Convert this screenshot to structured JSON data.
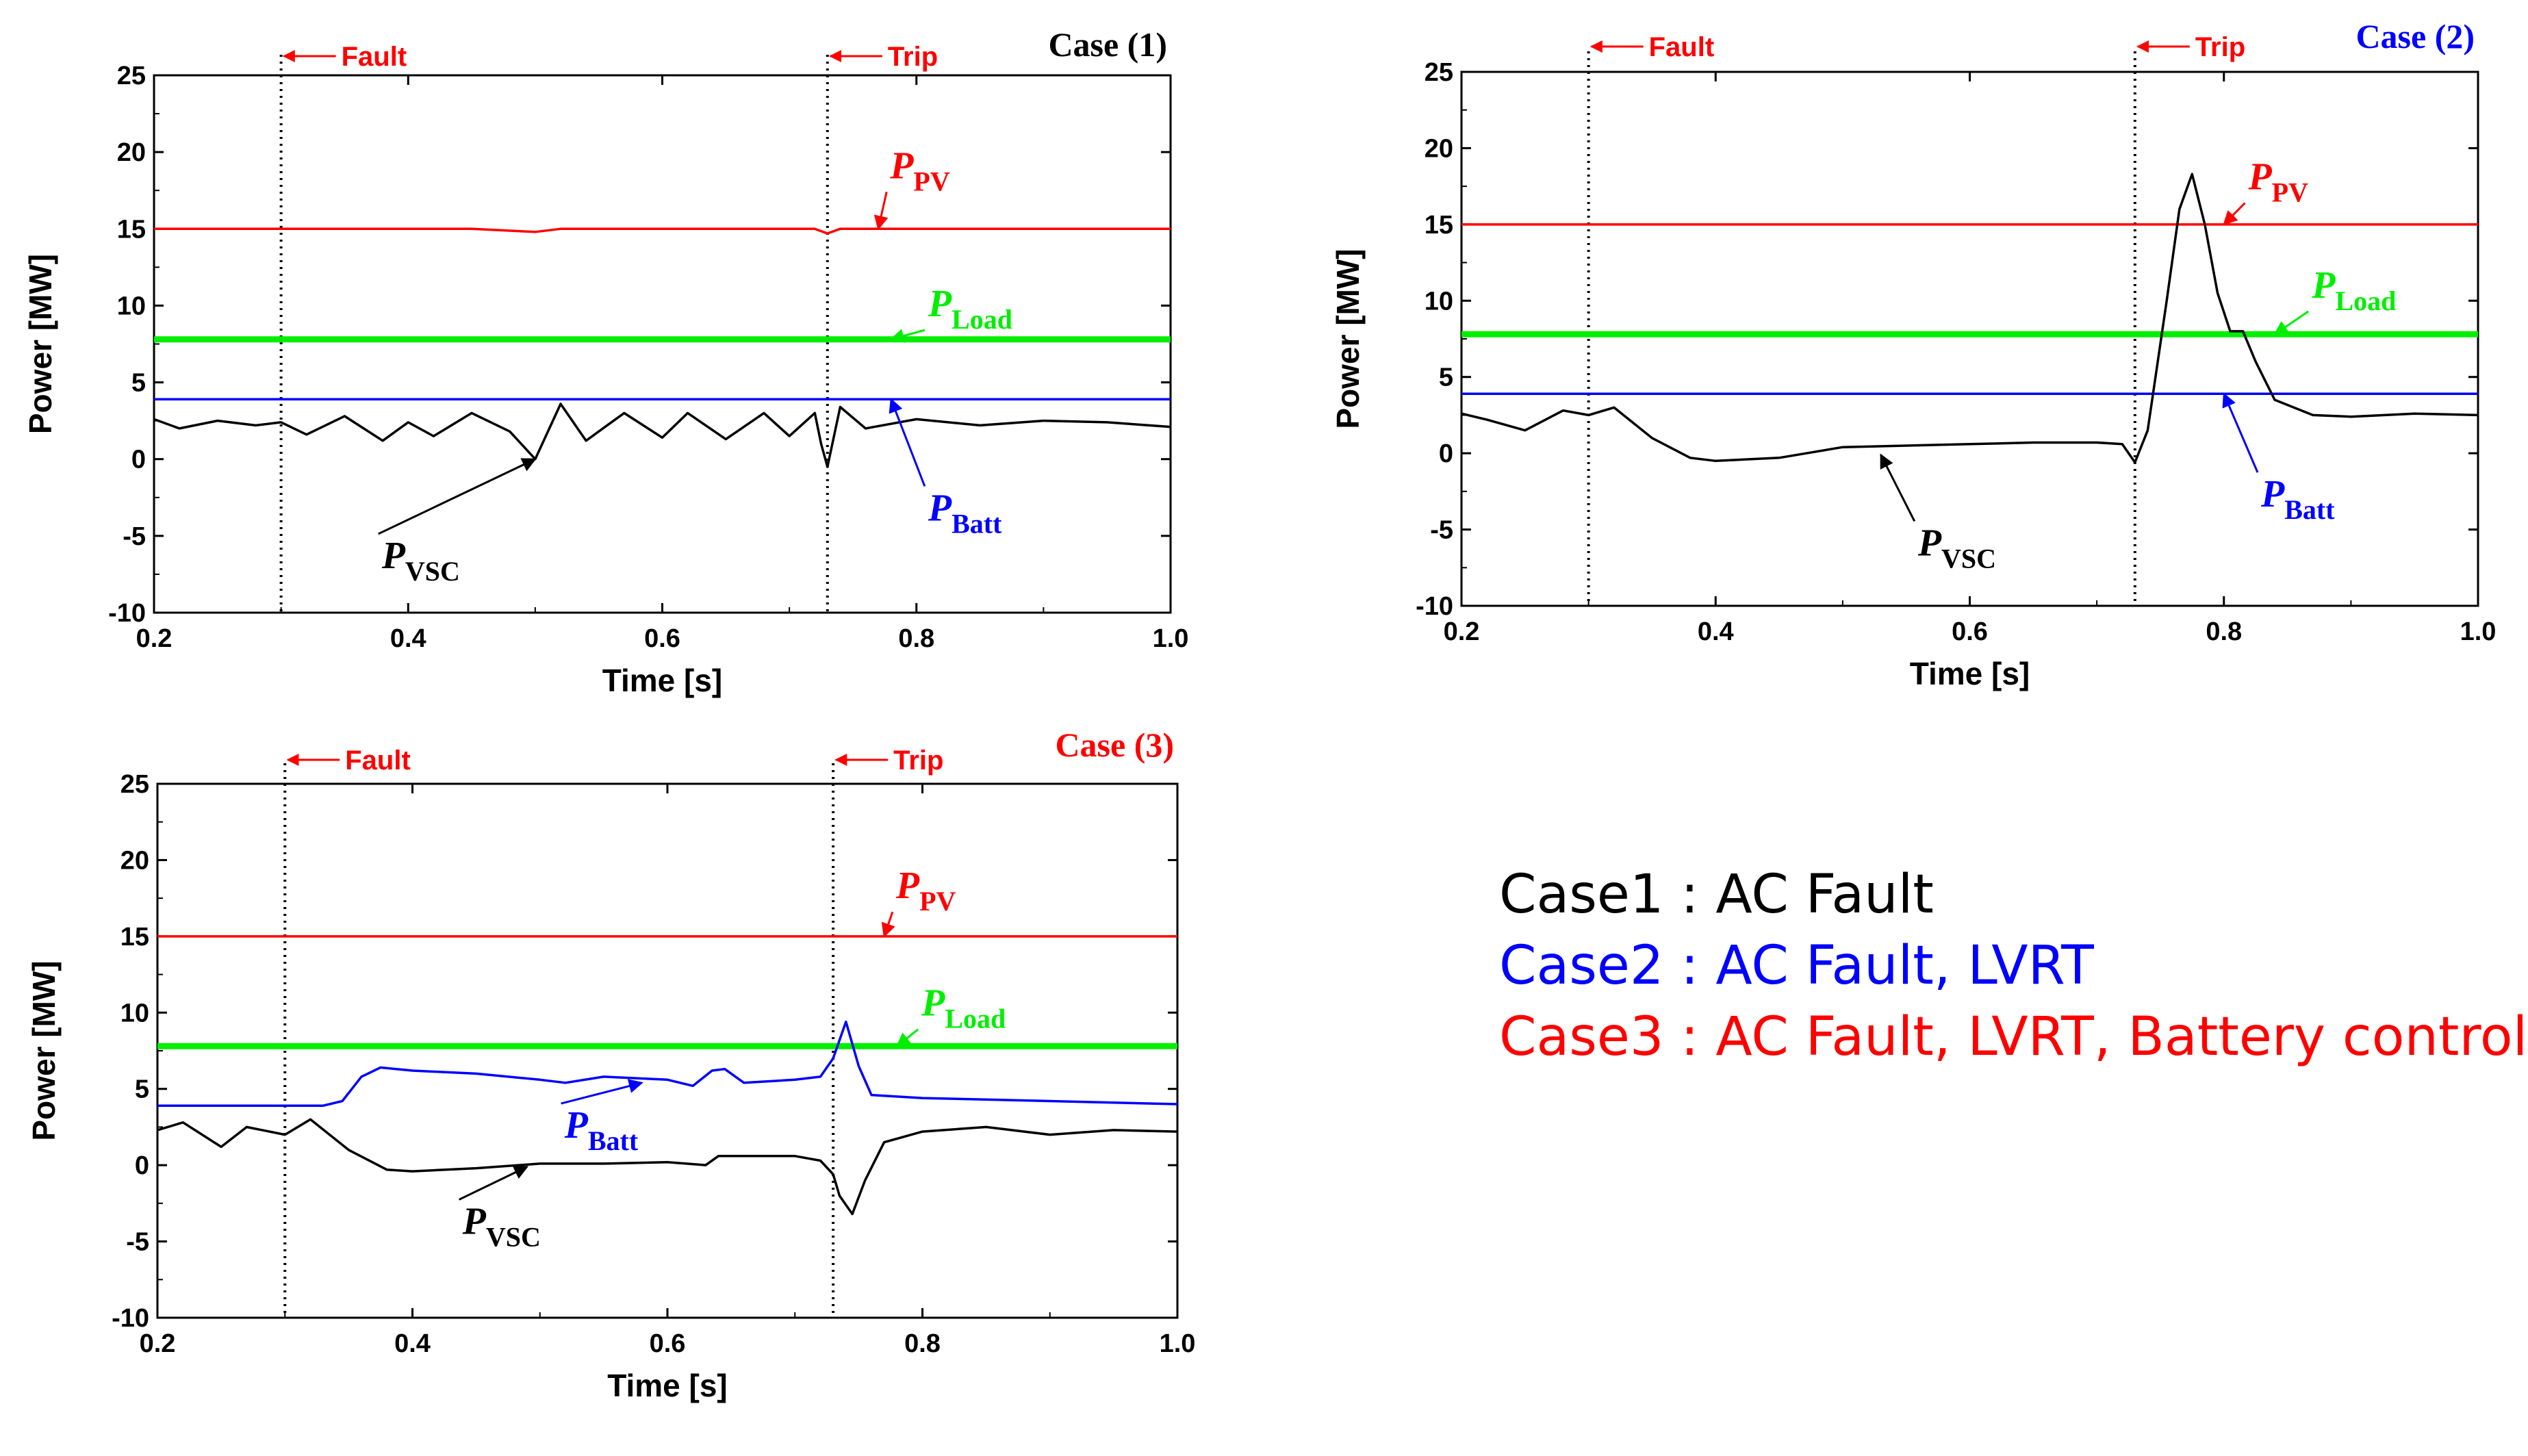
{
  "chart_data": [
    {
      "type": "line",
      "title": "Case (1)",
      "title_color": "#000000",
      "xlabel": "Time [s]",
      "ylabel": "Power [MW]",
      "xlim": [
        0.2,
        1.0
      ],
      "ylim": [
        -10,
        25
      ],
      "xticks": [
        0.2,
        0.4,
        0.6,
        0.8,
        1.0
      ],
      "xtick_labels": [
        "0.2",
        "0.4",
        "0.6",
        "0.8",
        "1.0"
      ],
      "yticks": [
        -10,
        -5,
        0,
        5,
        10,
        15,
        20,
        25
      ],
      "ytick_labels": [
        "-10",
        "-5",
        "0",
        "5",
        "10",
        "15",
        "20",
        "25"
      ],
      "events": [
        {
          "name": "fault",
          "label": "Fault",
          "x": 0.3
        },
        {
          "name": "trip",
          "label": "Trip",
          "x": 0.73
        }
      ],
      "series": [
        {
          "key": "pv",
          "name": "P_PV",
          "label_main": "P",
          "label_sub": "PV",
          "color": "#ff0000",
          "x": [
            0.2,
            0.45,
            0.5,
            0.52,
            0.72,
            0.73,
            0.74,
            1.0
          ],
          "y": [
            15,
            15,
            14.8,
            15,
            15,
            14.7,
            15,
            15
          ],
          "annotation": {
            "x": 0.79,
            "y": 18.3,
            "arrow_to": [
              0.77,
              15
            ]
          }
        },
        {
          "key": "load",
          "name": "P_Load",
          "label_main": "P",
          "label_sub": "Load",
          "color": "#00ee00",
          "x": [
            0.2,
            1.0
          ],
          "y": [
            7.8,
            7.8
          ],
          "annotation": {
            "x": 0.82,
            "y": 9.3,
            "arrow_to": [
              0.78,
              7.8
            ]
          }
        },
        {
          "key": "batt",
          "name": "P_Batt",
          "label_main": "P",
          "label_sub": "Batt",
          "color": "#0000ff",
          "x": [
            0.2,
            1.0
          ],
          "y": [
            3.9,
            3.9
          ],
          "annotation": {
            "x": 0.82,
            "y": -4.0,
            "arrow_to": [
              0.78,
              3.9
            ]
          }
        },
        {
          "key": "vsc",
          "name": "P_VSC",
          "label_main": "P",
          "label_sub": "VSC",
          "color": "#000000",
          "x": [
            0.2,
            0.22,
            0.25,
            0.28,
            0.3,
            0.32,
            0.35,
            0.38,
            0.4,
            0.42,
            0.45,
            0.48,
            0.5,
            0.52,
            0.54,
            0.57,
            0.6,
            0.62,
            0.65,
            0.68,
            0.7,
            0.72,
            0.725,
            0.73,
            0.74,
            0.76,
            0.8,
            0.85,
            0.9,
            0.95,
            1.0
          ],
          "y": [
            2.6,
            2.0,
            2.5,
            2.2,
            2.4,
            1.6,
            2.8,
            1.2,
            2.4,
            1.5,
            3.0,
            1.8,
            0.0,
            3.6,
            1.2,
            3.0,
            1.4,
            3.0,
            1.3,
            3.0,
            1.5,
            3.0,
            1.0,
            -0.5,
            3.4,
            2.0,
            2.6,
            2.2,
            2.5,
            2.4,
            2.1
          ],
          "annotation": {
            "x": 0.39,
            "y": -7.1,
            "arrow_to": [
              0.5,
              0.0
            ]
          }
        }
      ]
    },
    {
      "type": "line",
      "title": "Case (2)",
      "title_color": "#0000ff",
      "xlabel": "Time [s]",
      "ylabel": "Power [MW]",
      "xlim": [
        0.2,
        1.0
      ],
      "ylim": [
        -10,
        25
      ],
      "xticks": [
        0.2,
        0.4,
        0.6,
        0.8,
        1.0
      ],
      "xtick_labels": [
        "0.2",
        "0.4",
        "0.6",
        "0.8",
        "1.0"
      ],
      "yticks": [
        -10,
        -5,
        0,
        5,
        10,
        15,
        20,
        25
      ],
      "ytick_labels": [
        "-10",
        "-5",
        "0",
        "5",
        "10",
        "15",
        "20",
        "25"
      ],
      "events": [
        {
          "name": "fault",
          "label": "Fault",
          "x": 0.3
        },
        {
          "name": "trip",
          "label": "Trip",
          "x": 0.73
        }
      ],
      "series": [
        {
          "key": "pv",
          "name": "P_PV",
          "label_main": "P",
          "label_sub": "PV",
          "color": "#ff0000",
          "x": [
            0.2,
            1.0
          ],
          "y": [
            15,
            15
          ],
          "annotation": {
            "x": 0.83,
            "y": 17.3,
            "arrow_to": [
              0.8,
              15
            ]
          }
        },
        {
          "key": "load",
          "name": "P_Load",
          "label_main": "P",
          "label_sub": "Load",
          "color": "#00ee00",
          "x": [
            0.2,
            1.0
          ],
          "y": [
            7.8,
            7.8
          ],
          "annotation": {
            "x": 0.88,
            "y": 10.2,
            "arrow_to": [
              0.84,
              7.8
            ]
          }
        },
        {
          "key": "batt",
          "name": "P_Batt",
          "label_main": "P",
          "label_sub": "Batt",
          "color": "#0000ff",
          "x": [
            0.2,
            1.0
          ],
          "y": [
            3.9,
            3.9
          ],
          "annotation": {
            "x": 0.84,
            "y": -3.5,
            "arrow_to": [
              0.8,
              3.9
            ]
          }
        },
        {
          "key": "vsc",
          "name": "P_VSC",
          "label_main": "P",
          "label_sub": "VSC",
          "color": "#000000",
          "x": [
            0.2,
            0.22,
            0.25,
            0.28,
            0.3,
            0.32,
            0.35,
            0.38,
            0.4,
            0.45,
            0.5,
            0.55,
            0.6,
            0.65,
            0.7,
            0.72,
            0.73,
            0.74,
            0.755,
            0.765,
            0.775,
            0.785,
            0.795,
            0.805,
            0.815,
            0.825,
            0.84,
            0.87,
            0.9,
            0.95,
            1.0
          ],
          "y": [
            2.6,
            2.2,
            1.5,
            2.8,
            2.5,
            3.0,
            1.0,
            -0.3,
            -0.5,
            -0.3,
            0.4,
            0.5,
            0.6,
            0.7,
            0.7,
            0.6,
            -0.6,
            1.5,
            10.0,
            16.0,
            18.3,
            15.0,
            10.5,
            8.0,
            8.0,
            6.0,
            3.5,
            2.5,
            2.4,
            2.6,
            2.5
          ],
          "annotation": {
            "x": 0.57,
            "y": -6.7,
            "arrow_to": [
              0.53,
              -0.1
            ]
          }
        }
      ]
    },
    {
      "type": "line",
      "title": "Case (3)",
      "title_color": "#ff0000",
      "xlabel": "Time [s]",
      "ylabel": "Power [MW]",
      "xlim": [
        0.2,
        1.0
      ],
      "ylim": [
        -10,
        25
      ],
      "xticks": [
        0.2,
        0.4,
        0.6,
        0.8,
        1.0
      ],
      "xtick_labels": [
        "0.2",
        "0.4",
        "0.6",
        "0.8",
        "1.0"
      ],
      "yticks": [
        -10,
        -5,
        0,
        5,
        10,
        15,
        20,
        25
      ],
      "ytick_labels": [
        "-10",
        "-5",
        "0",
        "5",
        "10",
        "15",
        "20",
        "25"
      ],
      "events": [
        {
          "name": "fault",
          "label": "Fault",
          "x": 0.3
        },
        {
          "name": "trip",
          "label": "Trip",
          "x": 0.73
        }
      ],
      "series": [
        {
          "key": "pv",
          "name": "P_PV",
          "label_main": "P",
          "label_sub": "PV",
          "color": "#ff0000",
          "x": [
            0.2,
            1.0
          ],
          "y": [
            15,
            15
          ],
          "annotation": {
            "x": 0.79,
            "y": 17.5,
            "arrow_to": [
              0.77,
              15
            ]
          }
        },
        {
          "key": "load",
          "name": "P_Load",
          "label_main": "P",
          "label_sub": "Load",
          "color": "#00ee00",
          "x": [
            0.2,
            1.0
          ],
          "y": [
            7.8,
            7.8
          ],
          "annotation": {
            "x": 0.81,
            "y": 9.8,
            "arrow_to": [
              0.78,
              7.8
            ]
          }
        },
        {
          "key": "batt",
          "name": "P_Batt",
          "label_main": "P",
          "label_sub": "Batt",
          "color": "#0000ff",
          "x": [
            0.2,
            0.33,
            0.345,
            0.36,
            0.375,
            0.4,
            0.45,
            0.5,
            0.52,
            0.55,
            0.6,
            0.62,
            0.635,
            0.645,
            0.66,
            0.7,
            0.72,
            0.73,
            0.74,
            0.75,
            0.76,
            0.8,
            0.9,
            1.0
          ],
          "y": [
            3.9,
            3.9,
            4.2,
            5.8,
            6.4,
            6.2,
            6.0,
            5.6,
            5.4,
            5.8,
            5.6,
            5.2,
            6.2,
            6.3,
            5.4,
            5.6,
            5.8,
            7.0,
            9.4,
            6.5,
            4.6,
            4.4,
            4.2,
            4.0
          ],
          "annotation": {
            "x": 0.53,
            "y": 1.8,
            "arrow_to": [
              0.58,
              5.4
            ]
          }
        },
        {
          "key": "vsc",
          "name": "P_VSC",
          "label_main": "P",
          "label_sub": "VSC",
          "color": "#000000",
          "x": [
            0.2,
            0.22,
            0.25,
            0.27,
            0.3,
            0.32,
            0.35,
            0.38,
            0.4,
            0.45,
            0.5,
            0.55,
            0.6,
            0.63,
            0.64,
            0.7,
            0.72,
            0.73,
            0.735,
            0.745,
            0.755,
            0.77,
            0.8,
            0.85,
            0.9,
            0.95,
            1.0
          ],
          "y": [
            2.3,
            2.8,
            1.2,
            2.5,
            2.0,
            3.0,
            1.0,
            -0.3,
            -0.4,
            -0.2,
            0.1,
            0.1,
            0.2,
            0.0,
            0.6,
            0.6,
            0.3,
            -0.6,
            -2.0,
            -3.2,
            -1.0,
            1.5,
            2.2,
            2.5,
            2.0,
            2.3,
            2.2
          ],
          "annotation": {
            "x": 0.45,
            "y": -4.5,
            "arrow_to": [
              0.49,
              -0.1
            ]
          }
        }
      ]
    }
  ],
  "legend": {
    "lines": [
      {
        "text": "Case1 : AC Fault",
        "color": "#000000"
      },
      {
        "text": "Case2 : AC Fault, LVRT",
        "color": "#0000ff"
      },
      {
        "text": "Case3 : AC Fault, LVRT, Battery control",
        "color": "#ff0000"
      }
    ]
  }
}
